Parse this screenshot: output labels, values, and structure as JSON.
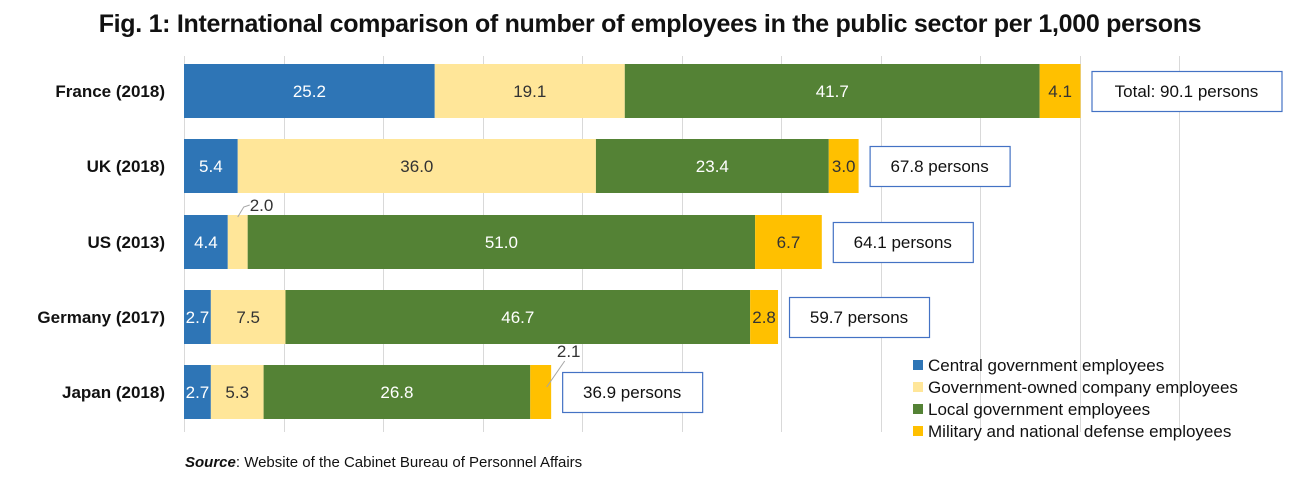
{
  "chart_data": {
    "type": "bar",
    "orientation": "horizontal",
    "stacked": true,
    "title": "Fig. 1: International comparison of number of employees in the public sector per 1,000 persons",
    "xlabel": "",
    "ylabel": "",
    "xlim": [
      0,
      100
    ],
    "grid": true,
    "x_tick_labels_shown": false,
    "categories": [
      "France (2018)",
      "UK (2018)",
      "US (2013)",
      "Germany (2017)",
      "Japan (2018)"
    ],
    "series": [
      {
        "name": "Central government employees",
        "color": "#2E75B6",
        "label_color": "#ffffff",
        "values": [
          25.2,
          5.4,
          4.4,
          2.7,
          2.7
        ]
      },
      {
        "name": "Government-owned company employees",
        "color": "#FFE699",
        "label_color": "#333333",
        "values": [
          19.1,
          36.0,
          2.0,
          7.5,
          5.3
        ]
      },
      {
        "name": "Local government employees",
        "color": "#548235",
        "label_color": "#ffffff",
        "values": [
          41.7,
          23.4,
          51.0,
          46.7,
          26.8
        ]
      },
      {
        "name": "Military and national defense employees",
        "color": "#FFC000",
        "label_color": "#333333",
        "values": [
          4.1,
          3.0,
          6.7,
          2.8,
          2.1
        ]
      }
    ],
    "data_labels": [
      [
        "25.2",
        "19.1",
        "41.7",
        "4.1"
      ],
      [
        "5.4",
        "36.0",
        "23.4",
        "3.0"
      ],
      [
        "4.4",
        "2.0",
        "51.0",
        "6.7"
      ],
      [
        "2.7",
        "7.5",
        "46.7",
        "2.8"
      ],
      [
        "2.7",
        "5.3",
        "26.8",
        "2.1"
      ]
    ],
    "callout_labels": [
      {
        "category_index": 2,
        "series_index": 1,
        "text": "2.0"
      },
      {
        "category_index": 4,
        "series_index": 3,
        "text": "2.1"
      }
    ],
    "totals": [
      90.1,
      67.8,
      64.1,
      59.7,
      36.9
    ],
    "total_labels": [
      "Total: 90.1 persons",
      "67.8 persons",
      "64.1 persons",
      "59.7 persons",
      "36.9 persons"
    ],
    "legend_position": "bottom-right",
    "annotations": []
  },
  "source": {
    "key": "Source",
    "text": ": Website of the Cabinet Bureau of Personnel Affairs"
  },
  "colors": {
    "gridline": "#D9D9D9",
    "total_box_border": "#4472C4",
    "leader_line": "#A6A6A6"
  }
}
